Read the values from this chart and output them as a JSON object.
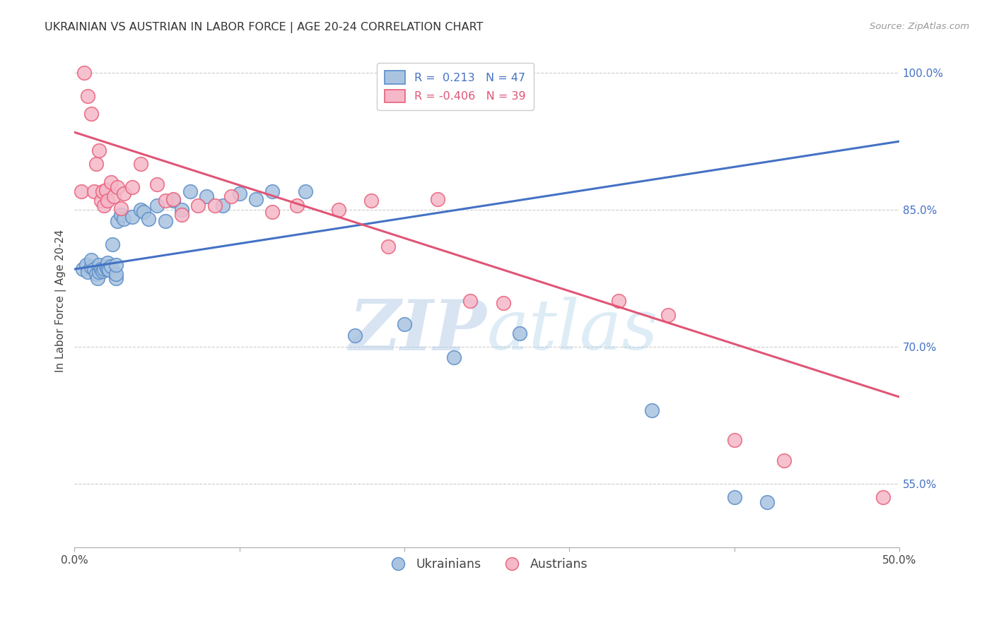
{
  "title": "UKRAINIAN VS AUSTRIAN IN LABOR FORCE | AGE 20-24 CORRELATION CHART",
  "source": "Source: ZipAtlas.com",
  "ylabel": "In Labor Force | Age 20-24",
  "xmin": 0.0,
  "xmax": 0.5,
  "ymin": 0.48,
  "ymax": 1.02,
  "xticks": [
    0.0,
    0.1,
    0.2,
    0.3,
    0.4,
    0.5
  ],
  "xticklabels": [
    "0.0%",
    "",
    "",
    "",
    "",
    "50.0%"
  ],
  "yticks_right": [
    0.55,
    0.7,
    0.85,
    1.0
  ],
  "yticklabels_right": [
    "55.0%",
    "70.0%",
    "85.0%",
    "100.0%"
  ],
  "yticks_grid": [
    0.55,
    0.7,
    0.85,
    1.0
  ],
  "blue_R": 0.213,
  "blue_N": 47,
  "pink_R": -0.406,
  "pink_N": 39,
  "blue_color": "#aac4e0",
  "pink_color": "#f5b8c8",
  "blue_edge_color": "#5b8ec9",
  "pink_edge_color": "#e8607a",
  "blue_line_color": "#4472c4",
  "pink_line_color": "#e05575",
  "legend_label_blue": "Ukrainians",
  "legend_label_pink": "Austrians",
  "watermark_zip": "ZIP",
  "watermark_atlas": "atlas",
  "blue_trend_y0": 0.785,
  "blue_trend_y1": 0.925,
  "pink_trend_y0": 0.935,
  "pink_trend_y1": 0.645,
  "grid_color": "#cccccc",
  "bg_color": "#ffffff",
  "title_fontsize": 11.5,
  "axis_label_fontsize": 11,
  "tick_fontsize": 11,
  "legend_fontsize": 11.5,
  "blue_scatter_x": [
    0.005,
    0.007,
    0.008,
    0.01,
    0.01,
    0.012,
    0.013,
    0.014,
    0.015,
    0.015,
    0.016,
    0.017,
    0.018,
    0.019,
    0.02,
    0.02,
    0.021,
    0.022,
    0.023,
    0.025,
    0.025,
    0.025,
    0.026,
    0.028,
    0.03,
    0.035,
    0.04,
    0.042,
    0.045,
    0.05,
    0.055,
    0.06,
    0.065,
    0.07,
    0.08,
    0.09,
    0.1,
    0.11,
    0.12,
    0.14,
    0.17,
    0.2,
    0.23,
    0.27,
    0.35,
    0.4,
    0.42
  ],
  "blue_scatter_y": [
    0.785,
    0.79,
    0.782,
    0.787,
    0.795,
    0.785,
    0.78,
    0.775,
    0.782,
    0.79,
    0.785,
    0.783,
    0.785,
    0.788,
    0.792,
    0.785,
    0.784,
    0.788,
    0.812,
    0.775,
    0.78,
    0.79,
    0.838,
    0.845,
    0.84,
    0.842,
    0.85,
    0.848,
    0.84,
    0.855,
    0.838,
    0.86,
    0.85,
    0.87,
    0.865,
    0.855,
    0.868,
    0.862,
    0.87,
    0.87,
    0.712,
    0.725,
    0.688,
    0.715,
    0.63,
    0.535,
    0.53
  ],
  "pink_scatter_x": [
    0.004,
    0.006,
    0.008,
    0.01,
    0.012,
    0.013,
    0.015,
    0.016,
    0.017,
    0.018,
    0.019,
    0.02,
    0.022,
    0.024,
    0.026,
    0.028,
    0.03,
    0.035,
    0.04,
    0.05,
    0.055,
    0.06,
    0.065,
    0.075,
    0.085,
    0.095,
    0.12,
    0.135,
    0.16,
    0.18,
    0.19,
    0.22,
    0.24,
    0.26,
    0.33,
    0.36,
    0.4,
    0.43,
    0.49
  ],
  "pink_scatter_y": [
    0.87,
    1.0,
    0.975,
    0.955,
    0.87,
    0.9,
    0.915,
    0.86,
    0.87,
    0.855,
    0.872,
    0.86,
    0.88,
    0.865,
    0.875,
    0.852,
    0.868,
    0.875,
    0.9,
    0.878,
    0.86,
    0.862,
    0.845,
    0.855,
    0.855,
    0.865,
    0.848,
    0.855,
    0.85,
    0.86,
    0.81,
    0.862,
    0.75,
    0.748,
    0.75,
    0.735,
    0.598,
    0.575,
    0.535
  ]
}
